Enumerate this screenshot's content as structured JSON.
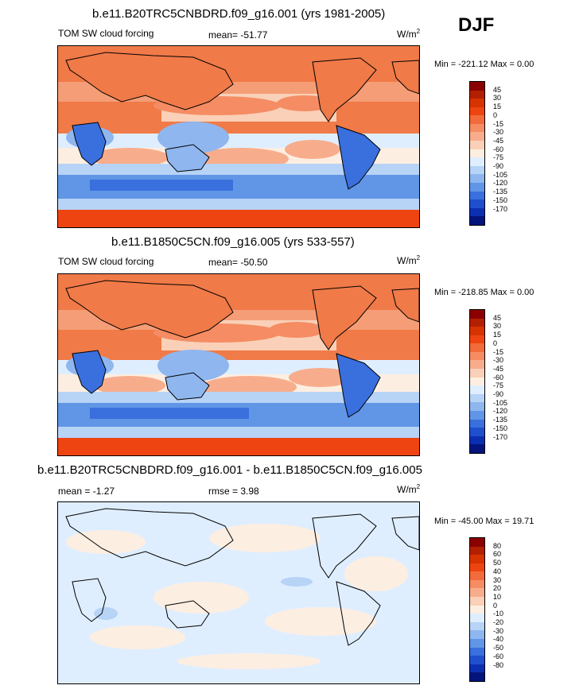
{
  "season": "DJF",
  "panels": [
    {
      "title": "b.e11.B20TRC5CNBDRD.f09_g16.001 (yrs 1981-2005)",
      "left_label": "TOM SW cloud forcing",
      "center_label": "mean= -51.77",
      "units": "W/m",
      "units_exp": "2",
      "minmax": "Min = -221.12 Max =   0.00",
      "colorbar": {
        "labels": [
          "45",
          "30",
          "15",
          "0",
          "-15",
          "-30",
          "-45",
          "-60",
          "-75",
          "-90",
          "-105",
          "-120",
          "-135",
          "-150",
          "-170"
        ],
        "colors": [
          "#8b0000",
          "#b22000",
          "#d63300",
          "#ee4411",
          "#f36b3b",
          "#f58c63",
          "#f7ad8c",
          "#fad0b8",
          "#fdeee2",
          "#dfeeff",
          "#b7d3f6",
          "#8fb6ef",
          "#6196e6",
          "#3a6fde",
          "#1f4fce",
          "#0c2fb1",
          "#04147c"
        ]
      }
    },
    {
      "title": "b.e11.B1850C5CN.f09_g16.005 (yrs 533-557)",
      "left_label": "TOM SW cloud forcing",
      "center_label": "mean= -50.50",
      "units": "W/m",
      "units_exp": "2",
      "minmax": "Min = -218.85 Max =   0.00",
      "colorbar": {
        "labels": [
          "45",
          "30",
          "15",
          "0",
          "-15",
          "-30",
          "-45",
          "-60",
          "-75",
          "-90",
          "-105",
          "-120",
          "-135",
          "-150",
          "-170"
        ],
        "colors": [
          "#8b0000",
          "#b22000",
          "#d63300",
          "#ee4411",
          "#f36b3b",
          "#f58c63",
          "#f7ad8c",
          "#fad0b8",
          "#fdeee2",
          "#dfeeff",
          "#b7d3f6",
          "#8fb6ef",
          "#6196e6",
          "#3a6fde",
          "#1f4fce",
          "#0c2fb1",
          "#04147c"
        ]
      }
    },
    {
      "title": "b.e11.B20TRC5CNBDRD.f09_g16.001 - b.e11.B1850C5CN.f09_g16.005",
      "left_label": "mean =  -1.27",
      "center_label": "rmse =   3.98",
      "units": "W/m",
      "units_exp": "2",
      "minmax": "Min = -45.00 Max =  19.71",
      "colorbar": {
        "labels": [
          "80",
          "60",
          "50",
          "40",
          "30",
          "20",
          "10",
          "0",
          "-10",
          "-20",
          "-30",
          "-40",
          "-50",
          "-60",
          "-80"
        ],
        "colors": [
          "#8b0000",
          "#b22000",
          "#d63300",
          "#ee4411",
          "#f36b3b",
          "#f58c63",
          "#f7ad8c",
          "#fad0b8",
          "#fdeee2",
          "#dfeeff",
          "#b7d3f6",
          "#8fb6ef",
          "#6196e6",
          "#3a6fde",
          "#1f4fce",
          "#0c2fb1",
          "#04147c"
        ]
      }
    }
  ]
}
